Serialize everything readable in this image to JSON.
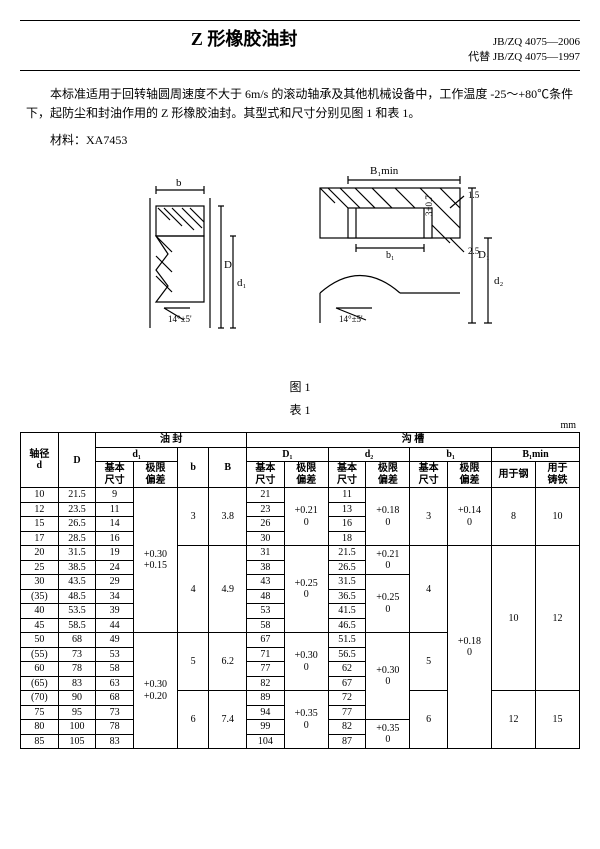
{
  "header": {
    "title": "Z 形橡胶油封",
    "code_top": "JB/ZQ 4075—2006",
    "code_bottom": "代替 JB/ZQ 4075—1997"
  },
  "intro": {
    "para": "本标准适用于回转轴圆周速度不大于 6m/s 的滚动轴承及其他机械设备中，工作温度 -25～+80℃条件下，起防尘和封油作用的 Z 形橡胶油封。其型式和尺寸分别见图 1 和表 1。",
    "material_label": "材料：",
    "material_value": "XA7453"
  },
  "figure": {
    "caption": "图 1",
    "labels": {
      "b": "b",
      "B": "B",
      "d": "d",
      "d1": "d₁",
      "D": "D",
      "Bimin": "B₁min",
      "D1": "D₁",
      "d2": "d₂",
      "b1": "b₁",
      "angle": "14°±5'",
      "r1": "2.5",
      "r2": "1.5",
      "tol": "3±0.7"
    },
    "colors": {
      "stroke": "#000000",
      "fill1": "#ffffff"
    }
  },
  "table": {
    "caption": "表 1",
    "unit": "mm",
    "head": {
      "group_seal": "油  封",
      "group_groove": "沟  槽",
      "shaft_d": "轴径\nd",
      "D": "D",
      "d1": "d₁",
      "b": "b",
      "B": "B",
      "D1": "D₁",
      "d2": "d₂",
      "b1": "b₁",
      "B1min": "B₁min",
      "basic": "基本\n尺寸",
      "limit": "极限\n偏差",
      "use_steel": "用于钢",
      "use_iron": "用于\n铸铁"
    },
    "tol": {
      "d1_a": "+0.30\n+0.15",
      "d1_b": "+0.30\n+0.20",
      "D1_a": "+0.21\n0",
      "D1_b": "+0.25\n0",
      "D1_c": "+0.30\n0",
      "D1_d": "+0.35\n0",
      "d2_a": "+0.18\n0",
      "d2_b": "+0.21\n0",
      "d2_c": "+0.25\n0",
      "d2_d": "+0.30\n0",
      "d2_e": "+0.35\n0",
      "b1_a": "+0.14\n0",
      "b1_b": "+0.18\n0"
    },
    "bB": [
      {
        "b": "3",
        "B": "3.8"
      },
      {
        "b": "4",
        "B": "4.9"
      },
      {
        "b": "5",
        "B": "6.2"
      },
      {
        "b": "6",
        "B": "7.4"
      }
    ],
    "b1": [
      "3",
      "4",
      "5",
      "6"
    ],
    "B1min": [
      {
        "s": "8",
        "i": "10"
      },
      {
        "s": "10",
        "i": "12"
      },
      {
        "s": "12",
        "i": "15"
      }
    ],
    "rows": [
      {
        "d": "10",
        "D": "21.5",
        "d1b": "9",
        "D1b": "21",
        "d2b": "11"
      },
      {
        "d": "12",
        "D": "23.5",
        "d1b": "11",
        "D1b": "23",
        "d2b": "13"
      },
      {
        "d": "15",
        "D": "26.5",
        "d1b": "14",
        "D1b": "26",
        "d2b": "16"
      },
      {
        "d": "17",
        "D": "28.5",
        "d1b": "16",
        "D1b": "30",
        "d2b": "18"
      },
      {
        "d": "20",
        "D": "31.5",
        "d1b": "19",
        "D1b": "31",
        "d2b": "21.5"
      },
      {
        "d": "25",
        "D": "38.5",
        "d1b": "24",
        "D1b": "38",
        "d2b": "26.5"
      },
      {
        "d": "30",
        "D": "43.5",
        "d1b": "29",
        "D1b": "43",
        "d2b": "31.5"
      },
      {
        "d": "(35)",
        "D": "48.5",
        "d1b": "34",
        "D1b": "48",
        "d2b": "36.5"
      },
      {
        "d": "40",
        "D": "53.5",
        "d1b": "39",
        "D1b": "53",
        "d2b": "41.5"
      },
      {
        "d": "45",
        "D": "58.5",
        "d1b": "44",
        "D1b": "58",
        "d2b": "46.5"
      },
      {
        "d": "50",
        "D": "68",
        "d1b": "49",
        "D1b": "67",
        "d2b": "51.5"
      },
      {
        "d": "(55)",
        "D": "73",
        "d1b": "53",
        "D1b": "71",
        "d2b": "56.5"
      },
      {
        "d": "60",
        "D": "78",
        "d1b": "58",
        "D1b": "77",
        "d2b": "62"
      },
      {
        "d": "(65)",
        "D": "83",
        "d1b": "63",
        "D1b": "82",
        "d2b": "67"
      },
      {
        "d": "(70)",
        "D": "90",
        "d1b": "68",
        "D1b": "89",
        "d2b": "72"
      },
      {
        "d": "75",
        "D": "95",
        "d1b": "73",
        "D1b": "94",
        "d2b": "77"
      },
      {
        "d": "80",
        "D": "100",
        "d1b": "78",
        "D1b": "99",
        "d2b": "82"
      },
      {
        "d": "85",
        "D": "105",
        "d1b": "83",
        "D1b": "104",
        "d2b": "87"
      }
    ]
  }
}
